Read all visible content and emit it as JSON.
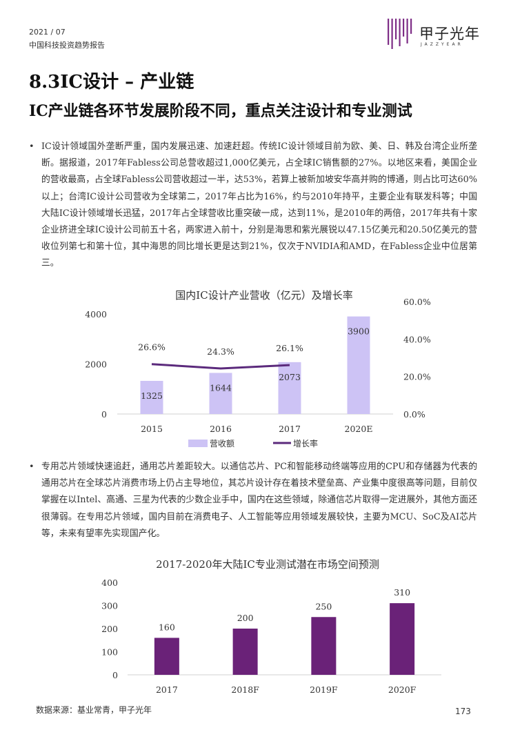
{
  "header": {
    "date": "2021 / 07",
    "subtitle": "中国科技投资趋势报告",
    "logo_title": "甲子光年",
    "logo_sub": "JAZZYEAR"
  },
  "section_title": "8.3IC设计 – 产业链",
  "heading": "IC产业链各环节发展阶段不同，重点关注设计和专业测试",
  "paragraph1": "IC设计领域国外垄断严重，国内发展迅速、加速赶超。传统IC设计领域目前为欧、美、日、韩及台湾企业所垄断。据报道，2017年Fabless公司总营收超过1,000亿美元，占全球IC销售额的27%。以地区来看，美国企业的营收最高，占全球Fabless公司营收超过一半，达53%，若算上被新加坡安华高并购的博通，则占比可达60%以上；台湾IC设计公司营收为全球第二，2017年占比为16%，约与2010年持平，主要企业有联发科等；中国大陆IC设计领域增长迅猛，2017年占全球营收比重突破一成，达到11%，是2010年的两倍，2017年共有十家企业挤进全球IC设计公司前五十名，两家进入前十，分别是海思和紫光展锐以47.15亿美元和20.50亿美元的营收位列第七和第十位，其中海思的同比增长更是达到21%，仅次于NVIDIA和AMD，在Fabless企业中位居第三。",
  "paragraph2": "专用芯片领域快速追赶，通用芯片差距较大。以通信芯片、PC和智能移动终端等应用的CPU和存储器为代表的通用芯片在全球芯片消费市场上仍占主导地位，其芯片设计存在着技术壁垒高、产业集中度很高等问题，目前仅掌握在以Intel、高通、三星为代表的少数企业手中，国内在这些领域，除通信芯片取得一定进展外，其他方面还很薄弱。在专用芯片领域，国内目前在消费电子、人工智能等应用领域发展较快，主要为MCU、SoC及AI芯片等，未来有望率先实现国产化。",
  "bullet": "•",
  "footer": {
    "source": "数据来源：基业常青，甲子光年",
    "page": "173"
  },
  "colors": {
    "bar1": "#cdc3f5",
    "line1": "#5b2a7c",
    "bar2": "#6a2278",
    "logo": "#7d2d86"
  },
  "chart_data": [
    {
      "type": "bar",
      "title": "国内IC设计产业营收（亿元）及增长率",
      "categories": [
        "2015",
        "2016",
        "2017",
        "2020E"
      ],
      "series": [
        {
          "name": "营收额",
          "type": "bar",
          "axis": "left",
          "values": [
            1325,
            1644,
            2073,
            3900
          ],
          "labels": [
            "1325",
            "1644",
            "2073",
            "3900"
          ]
        },
        {
          "name": "增长率",
          "type": "line",
          "axis": "right",
          "values": [
            0.266,
            0.243,
            0.261,
            null
          ],
          "labels": [
            "26.6%",
            "24.3%",
            "26.1%",
            null
          ]
        }
      ],
      "ylim": [
        0,
        4000
      ],
      "yticks": [
        "0",
        "2000",
        "4000"
      ],
      "y2lim": [
        0,
        0.6
      ],
      "y2ticks": [
        "0.0%",
        "20.0%",
        "40.0%",
        "60.0%"
      ],
      "legend": "bottom",
      "grid": false
    },
    {
      "type": "bar",
      "title": "2017-2020年大陆IC专业测试潜在市场空间预测",
      "categories": [
        "2017",
        "2018F",
        "2019F",
        "2020F"
      ],
      "values": [
        160,
        200,
        250,
        310
      ],
      "labels": [
        "160",
        "200",
        "250",
        "310"
      ],
      "ylim": [
        0,
        400
      ],
      "yticks": [
        "0",
        "100",
        "200",
        "300",
        "400"
      ],
      "grid": false
    }
  ]
}
